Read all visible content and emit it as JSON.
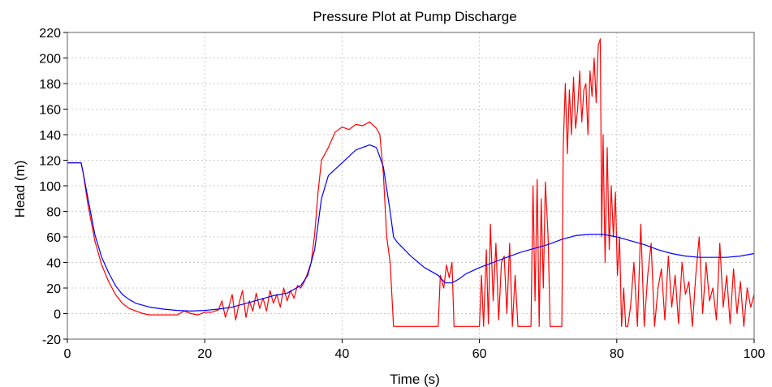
{
  "chart_data": {
    "type": "line",
    "title": "Pressure Plot at Pump Discharge",
    "xlabel": "Time (s)",
    "ylabel": "Head (m)",
    "xlim": [
      0,
      100
    ],
    "ylim": [
      -20,
      220
    ],
    "xticks": [
      0,
      20,
      40,
      60,
      80,
      100
    ],
    "yticks": [
      -20,
      0,
      20,
      40,
      60,
      80,
      100,
      120,
      140,
      160,
      180,
      200,
      220
    ],
    "grid": true,
    "legend": "none",
    "series": [
      {
        "color": "#0000ff",
        "points": [
          [
            0,
            118
          ],
          [
            2,
            118
          ],
          [
            2.3,
            110
          ],
          [
            3,
            90
          ],
          [
            4,
            62
          ],
          [
            5,
            44
          ],
          [
            6,
            32
          ],
          [
            7,
            22
          ],
          [
            8,
            15
          ],
          [
            9,
            11
          ],
          [
            10,
            8
          ],
          [
            12,
            5
          ],
          [
            14,
            3.5
          ],
          [
            16,
            2.5
          ],
          [
            18,
            2
          ],
          [
            20,
            2.5
          ],
          [
            22,
            3.5
          ],
          [
            24,
            5
          ],
          [
            26,
            8
          ],
          [
            28,
            11
          ],
          [
            30,
            14
          ],
          [
            32,
            16
          ],
          [
            34,
            22
          ],
          [
            35,
            30
          ],
          [
            36,
            50
          ],
          [
            37,
            90
          ],
          [
            38,
            108
          ],
          [
            40,
            118
          ],
          [
            42,
            128
          ],
          [
            44,
            132
          ],
          [
            45,
            130
          ],
          [
            46,
            115
          ],
          [
            47,
            80
          ],
          [
            47.5,
            60
          ],
          [
            48,
            56
          ],
          [
            50,
            45
          ],
          [
            52,
            36
          ],
          [
            54,
            30
          ],
          [
            55,
            24
          ],
          [
            56,
            24
          ],
          [
            57,
            27
          ],
          [
            58,
            31
          ],
          [
            60,
            36
          ],
          [
            62,
            40
          ],
          [
            64,
            44
          ],
          [
            66,
            48
          ],
          [
            68,
            51
          ],
          [
            70,
            54
          ],
          [
            72,
            58
          ],
          [
            74,
            61
          ],
          [
            76,
            62
          ],
          [
            78,
            62
          ],
          [
            80,
            60
          ],
          [
            82,
            57
          ],
          [
            84,
            54
          ],
          [
            86,
            50
          ],
          [
            88,
            47
          ],
          [
            90,
            45
          ],
          [
            92,
            44
          ],
          [
            94,
            44
          ],
          [
            96,
            44
          ],
          [
            98,
            45
          ],
          [
            100,
            47
          ]
        ]
      },
      {
        "color": "#ff0000",
        "points": [
          [
            0,
            118
          ],
          [
            2,
            118
          ],
          [
            2.3,
            110
          ],
          [
            3,
            85
          ],
          [
            4,
            57
          ],
          [
            5,
            38
          ],
          [
            6,
            25
          ],
          [
            7,
            15
          ],
          [
            8,
            8
          ],
          [
            9,
            4
          ],
          [
            10,
            2
          ],
          [
            11,
            0
          ],
          [
            12,
            -1
          ],
          [
            14,
            -1
          ],
          [
            16,
            -1
          ],
          [
            17,
            2
          ],
          [
            18,
            0
          ],
          [
            19,
            -1
          ],
          [
            20,
            1
          ],
          [
            21,
            1
          ],
          [
            22,
            3
          ],
          [
            22.5,
            10
          ],
          [
            23,
            -3
          ],
          [
            23.5,
            5
          ],
          [
            24,
            15
          ],
          [
            24.5,
            -5
          ],
          [
            25,
            8
          ],
          [
            25.5,
            18
          ],
          [
            26,
            -3
          ],
          [
            26.5,
            10
          ],
          [
            27,
            2
          ],
          [
            27.5,
            16
          ],
          [
            28,
            4
          ],
          [
            28.5,
            12
          ],
          [
            29,
            2
          ],
          [
            29.5,
            18
          ],
          [
            30,
            8
          ],
          [
            30.5,
            15
          ],
          [
            31,
            5
          ],
          [
            31.5,
            20
          ],
          [
            32,
            10
          ],
          [
            32.5,
            18
          ],
          [
            33,
            12
          ],
          [
            33.5,
            22
          ],
          [
            34,
            20
          ],
          [
            34.5,
            25
          ],
          [
            35,
            32
          ],
          [
            35.5,
            40
          ],
          [
            36,
            62
          ],
          [
            36.5,
            95
          ],
          [
            37,
            120
          ],
          [
            37.5,
            125
          ],
          [
            38,
            130
          ],
          [
            39,
            142
          ],
          [
            40,
            146
          ],
          [
            41,
            144
          ],
          [
            42,
            148
          ],
          [
            43,
            147
          ],
          [
            44,
            150
          ],
          [
            45,
            145
          ],
          [
            45.5,
            140
          ],
          [
            46,
            110
          ],
          [
            46.5,
            60
          ],
          [
            47,
            40
          ],
          [
            47.5,
            -10
          ],
          [
            48,
            -10
          ],
          [
            50,
            -10
          ],
          [
            52,
            -10
          ],
          [
            54,
            -10
          ],
          [
            54.3,
            30
          ],
          [
            54.8,
            20
          ],
          [
            55.2,
            38
          ],
          [
            55.6,
            28
          ],
          [
            56,
            40
          ],
          [
            56.3,
            -10
          ],
          [
            57,
            -10
          ],
          [
            58,
            -10
          ],
          [
            59,
            -10
          ],
          [
            60,
            -10
          ],
          [
            60.3,
            30
          ],
          [
            60.6,
            -10
          ],
          [
            61,
            50
          ],
          [
            61.3,
            -8
          ],
          [
            61.6,
            70
          ],
          [
            62,
            10
          ],
          [
            62.4,
            55
          ],
          [
            62.8,
            -5
          ],
          [
            63.2,
            40
          ],
          [
            63.6,
            45
          ],
          [
            64,
            0
          ],
          [
            64.4,
            55
          ],
          [
            64.8,
            -10
          ],
          [
            65.2,
            30
          ],
          [
            65.6,
            -10
          ],
          [
            66,
            -10
          ],
          [
            67,
            -10
          ],
          [
            67.5,
            -10
          ],
          [
            67.8,
            100
          ],
          [
            68.1,
            10
          ],
          [
            68.4,
            105
          ],
          [
            68.7,
            -10
          ],
          [
            69,
            90
          ],
          [
            69.3,
            20
          ],
          [
            69.6,
            103
          ],
          [
            70,
            60
          ],
          [
            70.3,
            -10
          ],
          [
            71,
            -10
          ],
          [
            72,
            -10
          ],
          [
            72.2,
            130
          ],
          [
            72.5,
            180
          ],
          [
            72.8,
            125
          ],
          [
            73.1,
            175
          ],
          [
            73.4,
            140
          ],
          [
            73.7,
            185
          ],
          [
            74,
            145
          ],
          [
            74.3,
            160
          ],
          [
            74.6,
            190
          ],
          [
            74.9,
            150
          ],
          [
            75.2,
            175
          ],
          [
            75.5,
            180
          ],
          [
            75.8,
            140
          ],
          [
            76.1,
            190
          ],
          [
            76.4,
            170
          ],
          [
            76.7,
            200
          ],
          [
            77,
            165
          ],
          [
            77.3,
            210
          ],
          [
            77.6,
            215
          ],
          [
            77.8,
            60
          ],
          [
            78,
            140
          ],
          [
            78.3,
            40
          ],
          [
            78.6,
            130
          ],
          [
            78.9,
            50
          ],
          [
            79.2,
            100
          ],
          [
            79.5,
            60
          ],
          [
            79.8,
            95
          ],
          [
            80.1,
            30
          ],
          [
            80.4,
            60
          ],
          [
            80.7,
            -10
          ],
          [
            81,
            20
          ],
          [
            81.3,
            -10
          ],
          [
            81.6,
            -10
          ],
          [
            82,
            5
          ],
          [
            82.5,
            40
          ],
          [
            83,
            -10
          ],
          [
            83.5,
            70
          ],
          [
            84,
            -10
          ],
          [
            84.5,
            30
          ],
          [
            85,
            55
          ],
          [
            85.5,
            -10
          ],
          [
            86,
            20
          ],
          [
            86.5,
            35
          ],
          [
            87,
            -5
          ],
          [
            87.5,
            45
          ],
          [
            88,
            5
          ],
          [
            88.5,
            30
          ],
          [
            89,
            -8
          ],
          [
            89.5,
            40
          ],
          [
            90,
            15
          ],
          [
            90.5,
            25
          ],
          [
            91,
            -10
          ],
          [
            91.5,
            30
          ],
          [
            92,
            60
          ],
          [
            92.5,
            0
          ],
          [
            93,
            40
          ],
          [
            93.5,
            10
          ],
          [
            94,
            20
          ],
          [
            94.5,
            -5
          ],
          [
            95,
            55
          ],
          [
            95.5,
            5
          ],
          [
            96,
            30
          ],
          [
            96.5,
            -8
          ],
          [
            97,
            35
          ],
          [
            97.5,
            0
          ],
          [
            98,
            25
          ],
          [
            98.5,
            -10
          ],
          [
            99,
            20
          ],
          [
            99.5,
            5
          ],
          [
            100,
            15
          ]
        ]
      }
    ]
  }
}
